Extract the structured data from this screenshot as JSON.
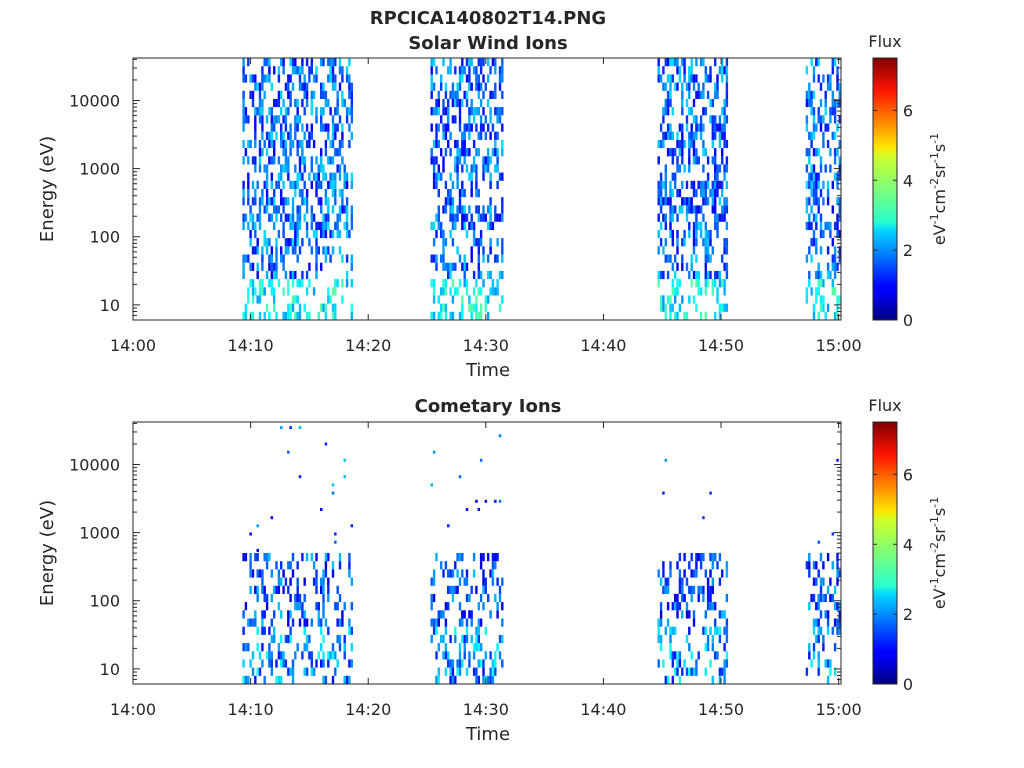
{
  "figure": {
    "title": "RPCICA140802T14.PNG"
  },
  "chart_data": [
    {
      "type": "heatmap",
      "title": "Solar Wind Ions",
      "xlabel": "Time",
      "ylabel": "Energy (eV)",
      "x_ticks": [
        "14:00",
        "14:10",
        "14:20",
        "14:30",
        "14:40",
        "14:50",
        "15:00"
      ],
      "x_tick_minutes": [
        0,
        10,
        20,
        30,
        40,
        50,
        60
      ],
      "xlim_minutes": [
        0,
        60.2
      ],
      "y_scale": "log",
      "y_ticks": [
        "10",
        "100",
        "1000",
        "10000"
      ],
      "y_tick_values": [
        10,
        100,
        1000,
        10000
      ],
      "ylim": [
        6,
        42000
      ],
      "colorbar": {
        "title": "Flux",
        "label_base": "eV",
        "ticks": [
          "0",
          "2",
          "4",
          "6"
        ],
        "range": [
          0,
          7.5
        ],
        "colormap": "jet"
      },
      "bursts_minutes": [
        [
          9.3,
          18.5
        ],
        [
          25.3,
          31.3
        ],
        [
          44.6,
          50.5
        ],
        [
          57.2,
          60.1
        ]
      ],
      "cell_value_profile": "flux ~1-3.5; higher energies (1e3-4e4 eV) mostly 1-2.5, lowest channels 2-3.5"
    },
    {
      "type": "heatmap",
      "title": "Cometary Ions",
      "xlabel": "Time",
      "ylabel": "Energy (eV)",
      "x_ticks": [
        "14:00",
        "14:10",
        "14:20",
        "14:30",
        "14:40",
        "14:50",
        "15:00"
      ],
      "x_tick_minutes": [
        0,
        10,
        20,
        30,
        40,
        50,
        60
      ],
      "xlim_minutes": [
        0,
        60.2
      ],
      "y_scale": "log",
      "y_ticks": [
        "10",
        "100",
        "1000",
        "10000"
      ],
      "y_tick_values": [
        10,
        100,
        1000,
        10000
      ],
      "ylim": [
        6,
        42000
      ],
      "colorbar": {
        "title": "Flux",
        "label_base": "eV",
        "ticks": [
          "0",
          "2",
          "4",
          "6"
        ],
        "range": [
          0,
          7.5
        ],
        "colormap": "jet"
      },
      "bursts_minutes": [
        [
          9.3,
          18.5
        ],
        [
          25.3,
          31.3
        ],
        [
          44.6,
          50.5
        ],
        [
          57.2,
          60.1
        ]
      ],
      "cell_value_profile": "mostly low energies 6-220 eV with flux 0.5-3; sparse isolated points 500-40000 eV with flux ~2"
    }
  ]
}
